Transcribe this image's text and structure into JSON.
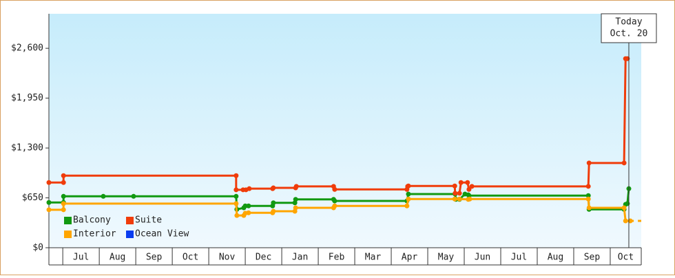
{
  "chart_data": {
    "type": "line",
    "step": true,
    "xlim": [
      -0.38,
      15.85
    ],
    "xticks": [
      {
        "value": 0.5,
        "label": "Jul"
      },
      {
        "value": 1.5,
        "label": "Aug"
      },
      {
        "value": 2.5,
        "label": "Sep"
      },
      {
        "value": 3.5,
        "label": "Oct"
      },
      {
        "value": 4.5,
        "label": "Nov"
      },
      {
        "value": 5.5,
        "label": "Dec"
      },
      {
        "value": 6.5,
        "label": "Jan"
      },
      {
        "value": 7.5,
        "label": "Feb"
      },
      {
        "value": 8.5,
        "label": "Mar"
      },
      {
        "value": 9.5,
        "label": "Apr"
      },
      {
        "value": 10.5,
        "label": "May"
      },
      {
        "value": 11.5,
        "label": "Jun"
      },
      {
        "value": 12.5,
        "label": "Jul"
      },
      {
        "value": 13.5,
        "label": "Aug"
      },
      {
        "value": 14.5,
        "label": "Sep"
      },
      {
        "value": 15.5,
        "label": "Oct"
      }
    ],
    "ylim": [
      0,
      3050
    ],
    "yticks": [
      {
        "value": 0,
        "label": "$0"
      },
      {
        "value": 650,
        "label": "$650"
      },
      {
        "value": 1300,
        "label": "$1,300"
      },
      {
        "value": 1950,
        "label": "$1,950"
      },
      {
        "value": 2600,
        "label": "$2,600"
      }
    ],
    "annotation": {
      "lines": [
        "Today",
        "Oct. 20"
      ],
      "x": 15.51
    },
    "series": [
      {
        "name": "Balcony",
        "color": "#119911",
        "x": [
          -0.38,
          0.02,
          0.02,
          1.11,
          1.94,
          4.75,
          4.77,
          4.96,
          5.0,
          5.09,
          5.75,
          5.77,
          6.36,
          6.38,
          7.42,
          7.45,
          9.43,
          9.47,
          10.75,
          10.77,
          10.87,
          11.02,
          11.11,
          11.13,
          14.4,
          14.42,
          15.38,
          15.42,
          15.47,
          15.51
        ],
        "values": [
          590,
          590,
          670,
          670,
          670,
          670,
          500,
          520,
          545,
          545,
          545,
          585,
          585,
          630,
          630,
          610,
          610,
          700,
          700,
          630,
          630,
          700,
          690,
          680,
          680,
          500,
          500,
          565,
          575,
          770
        ]
      },
      {
        "name": "Suite",
        "color": "#f03c0a",
        "x": [
          -0.38,
          0.02,
          0.02,
          4.75,
          4.75,
          4.94,
          5.02,
          5.11,
          5.75,
          5.77,
          6.38,
          6.4,
          7.42,
          7.45,
          9.43,
          9.45,
          9.47,
          10.74,
          10.75,
          10.87,
          10.91,
          11.09,
          11.13,
          11.21,
          14.4,
          14.42,
          15.38,
          15.42,
          15.47
        ],
        "values": [
          850,
          850,
          940,
          940,
          755,
          755,
          755,
          770,
          770,
          780,
          780,
          800,
          800,
          760,
          760,
          800,
          805,
          805,
          710,
          710,
          850,
          850,
          760,
          800,
          800,
          1105,
          1105,
          2465,
          2465
        ]
      },
      {
        "name": "Interior",
        "color": "#ffa500",
        "x": [
          -0.38,
          0.02,
          0.02,
          4.75,
          4.77,
          4.96,
          5.0,
          5.09,
          5.75,
          5.77,
          6.36,
          6.38,
          7.42,
          7.45,
          9.43,
          9.47,
          10.74,
          10.87,
          11.11,
          11.15,
          14.4,
          14.42,
          15.38,
          15.42,
          15.55
        ],
        "values": [
          495,
          495,
          575,
          575,
          420,
          420,
          450,
          455,
          455,
          475,
          475,
          520,
          520,
          545,
          545,
          635,
          635,
          635,
          630,
          635,
          635,
          520,
          520,
          350,
          350
        ]
      },
      {
        "name": "Ocean View",
        "color": "#0a3cf0",
        "x": [],
        "values": []
      }
    ]
  }
}
